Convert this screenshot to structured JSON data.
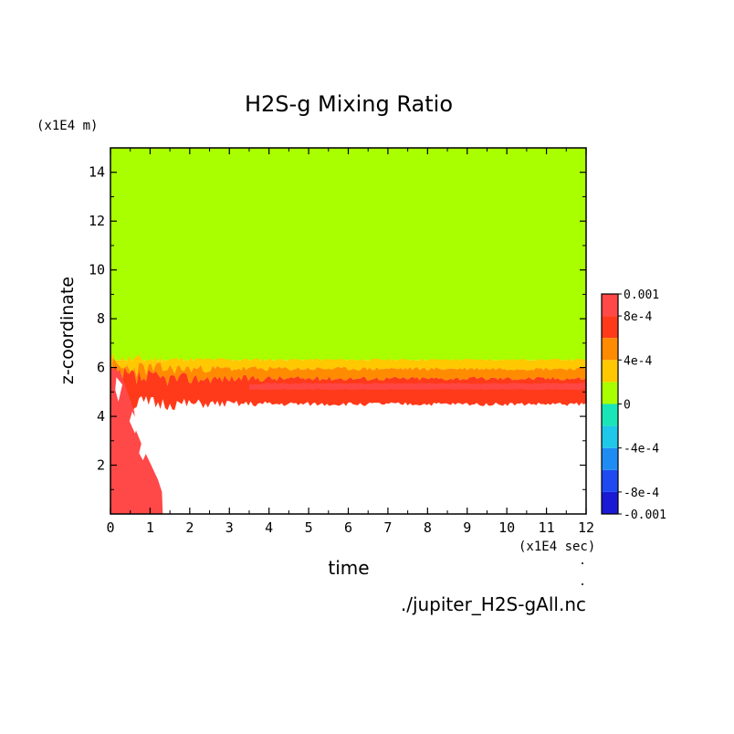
{
  "chart_data": {
    "type": "heatmap",
    "title": "H2S-g Mixing Ratio",
    "xlabel": "time",
    "ylabel": "z-coordinate",
    "x_unit": "(x1E4 sec)",
    "y_unit": "(x1E4 m)",
    "source_file": "./jupiter_H2S-gAll.nc",
    "xlim": [
      0,
      12
    ],
    "ylim": [
      0,
      15
    ],
    "x_ticks": [
      "0",
      "1",
      "2",
      "3",
      "4",
      "5",
      "6",
      "7",
      "8",
      "9",
      "10",
      "11",
      "12"
    ],
    "y_ticks": [
      "2",
      "4",
      "6",
      "8",
      "10",
      "12",
      "14"
    ],
    "grid": false,
    "colorbar": {
      "levels": [
        -0.001,
        -0.0008,
        -0.0006,
        -0.0004,
        -0.0002,
        0,
        0.0002,
        0.0004,
        0.0006,
        0.0008,
        0.001
      ],
      "labels": [
        "0.001",
        "8e-4",
        "4e-4",
        "0",
        "-4e-4",
        "-8e-4",
        "-0.001"
      ],
      "colors": [
        "#1a1ad4",
        "#1f4af2",
        "#1f8cf4",
        "#1fc8e8",
        "#18e6b8",
        "#a9ff00",
        "#ffc800",
        "#ff8c00",
        "#ff3a1a",
        "#ff4848"
      ]
    },
    "regions": [
      {
        "band": "0 to 2e-4",
        "color": "#a9ff00",
        "z_range": [
          6.3,
          15
        ]
      },
      {
        "band": "2e-4 to 4e-4",
        "color": "#ffc800",
        "z_range_steady": [
          5.95,
          6.35
        ]
      },
      {
        "band": "4e-4 to 6e-4",
        "color": "#ff8c00",
        "z_range_steady": [
          5.55,
          5.95
        ]
      },
      {
        "band": "6e-4 to 8e-4",
        "color": "#ff3a1a",
        "z_range_steady": [
          4.45,
          5.55
        ]
      },
      {
        "band": "8e-4 to 0.001",
        "color": "#ff4848",
        "z_range_steady": [
          4.45,
          5.1
        ]
      }
    ]
  }
}
